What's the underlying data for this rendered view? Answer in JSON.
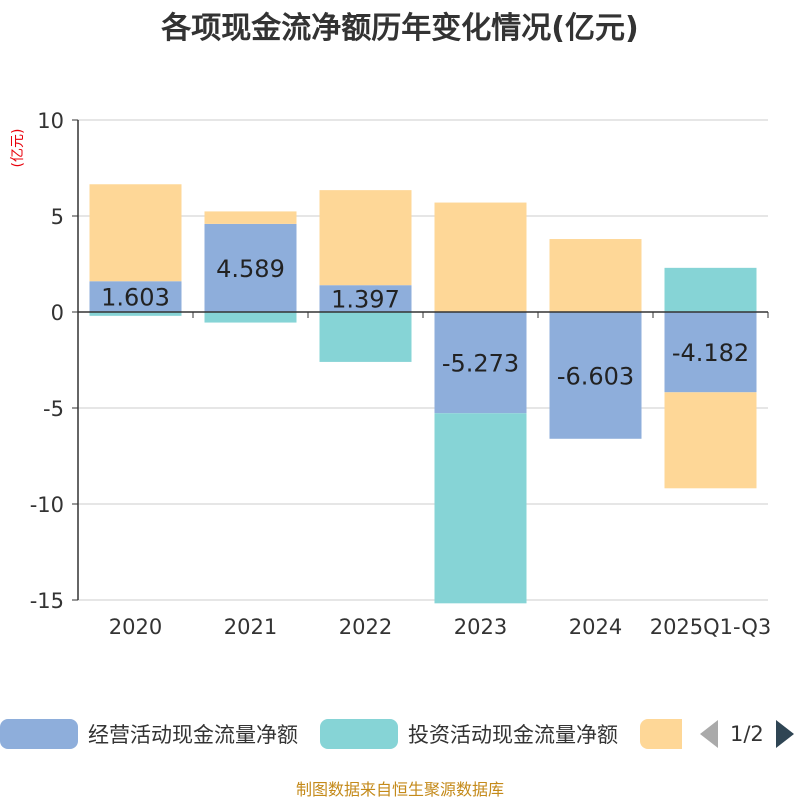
{
  "chart_data": {
    "type": "bar",
    "stacked": true,
    "title": "各项现金流净额历年变化情况(亿元)",
    "ylabel": "(亿元)",
    "categories": [
      "2020",
      "2021",
      "2022",
      "2023",
      "2024",
      "2025Q1-Q3"
    ],
    "ylim": [
      -15,
      10
    ],
    "yticks": [
      10,
      5,
      0,
      -5,
      -10,
      -15
    ],
    "series": [
      {
        "name": "经营活动现金流量净额",
        "color": "#8eaedb",
        "labeled": true,
        "values": [
          1.603,
          4.589,
          1.397,
          -5.273,
          -6.603,
          -4.182
        ]
      },
      {
        "name": "投资活动现金流量净额",
        "color": "#86d4d6",
        "labeled": false,
        "values": [
          -0.2,
          -0.55,
          -2.6,
          -9.9,
          0,
          2.3
        ]
      },
      {
        "name": "",
        "color": "#fed797",
        "labeled": false,
        "values": [
          5.05,
          0.65,
          4.95,
          5.7,
          3.8,
          -5.0
        ]
      }
    ],
    "grid": true,
    "legend_position": "bottom"
  },
  "legend": {
    "items": [
      {
        "label": "经营活动现金流量净额",
        "color": "#8eaedb"
      },
      {
        "label": "投资活动现金流量净额",
        "color": "#86d4d6"
      },
      {
        "label": "",
        "color": "#fed797"
      }
    ],
    "page": "1/2"
  },
  "source": "制图数据来自恒生聚源数据库",
  "colors": {
    "title": "#333333",
    "axis_unit": "#e8000b",
    "grid": "#cccccc",
    "source": "#c48a1a"
  }
}
